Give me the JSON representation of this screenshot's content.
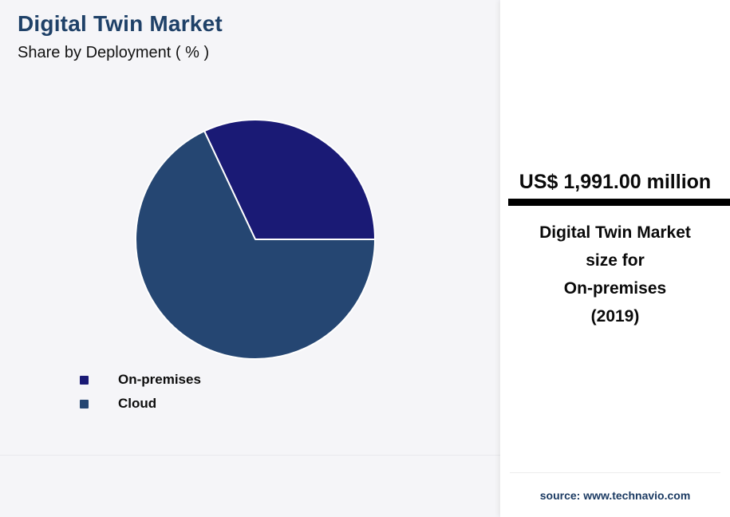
{
  "header": {
    "title": "Digital Twin Market",
    "subtitle": "Share by Deployment ( % )"
  },
  "chart_data": {
    "type": "pie",
    "title": "Digital Twin Market - Share by Deployment (%)",
    "labels": [
      "On-premises",
      "Cloud"
    ],
    "values": [
      32,
      68
    ],
    "unit": "%",
    "colors": [
      "#1A1A75",
      "#254672"
    ],
    "stroke": "#FFFFFF",
    "start_angle_deg": 0,
    "direction": "counterclockwise",
    "legend_position": "bottom-left",
    "data_labels_shown": false
  },
  "callout": {
    "value": "US$ 1,991.00 million",
    "description": "Digital Twin Market\nsize for\nOn-premises\n(2019)"
  },
  "footer": {
    "source": "source: www.technavio.com"
  },
  "colors": {
    "title": "#1F4168",
    "subtitle": "#121212",
    "callout_text": "#0A0A0A",
    "highlight_bar": "#000000",
    "source_text": "#1C3B63",
    "left_background": "#F5F5F8",
    "card_background": "#FFFFFF"
  }
}
